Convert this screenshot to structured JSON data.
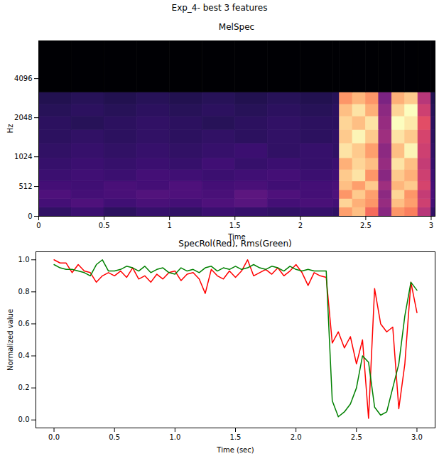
{
  "title": "Exp_4- best 3 features",
  "chart_data": [
    {
      "type": "heatmap",
      "title": "MelSpec",
      "x_label": "Time",
      "y_label": "Hz",
      "xlim": [
        0,
        3.03
      ],
      "xticks": [
        0,
        0.5,
        1,
        1.5,
        2,
        2.5,
        3
      ],
      "ylim": [
        0,
        8000
      ],
      "yticks": [
        0,
        512,
        1024,
        2048,
        4096
      ],
      "x_edges": [
        0,
        0.25,
        0.5,
        0.75,
        1,
        1.25,
        1.5,
        1.75,
        2,
        2.25,
        2.3,
        2.4,
        2.5,
        2.6,
        2.7,
        2.8,
        2.9,
        3,
        3.03
      ],
      "y_edges": [
        0,
        150,
        300,
        450,
        600,
        800,
        1000,
        1300,
        1650,
        2100,
        2600,
        3200,
        8000
      ],
      "cells": [
        [
          0.16,
          0.18,
          0.15,
          0.17,
          0.16,
          0.18,
          0.17,
          0.16,
          0.17,
          0.16,
          0.72,
          0.78,
          0.62,
          0.35,
          0.7,
          0.66,
          0.45,
          0.16
        ],
        [
          0.2,
          0.22,
          0.19,
          0.21,
          0.2,
          0.22,
          0.24,
          0.2,
          0.21,
          0.2,
          0.82,
          0.75,
          0.7,
          0.38,
          0.78,
          0.72,
          0.5,
          0.2
        ],
        [
          0.22,
          0.2,
          0.21,
          0.23,
          0.22,
          0.21,
          0.25,
          0.22,
          0.2,
          0.22,
          0.7,
          0.8,
          0.72,
          0.36,
          0.82,
          0.7,
          0.48,
          0.21
        ],
        [
          0.2,
          0.19,
          0.21,
          0.2,
          0.22,
          0.2,
          0.21,
          0.19,
          0.2,
          0.21,
          0.78,
          0.72,
          0.8,
          0.4,
          0.76,
          0.8,
          0.52,
          0.2
        ],
        [
          0.18,
          0.19,
          0.18,
          0.2,
          0.19,
          0.18,
          0.19,
          0.2,
          0.18,
          0.19,
          0.8,
          0.85,
          0.7,
          0.35,
          0.8,
          0.75,
          0.5,
          0.18
        ],
        [
          0.17,
          0.18,
          0.17,
          0.18,
          0.17,
          0.19,
          0.17,
          0.18,
          0.17,
          0.18,
          0.75,
          0.82,
          0.78,
          0.38,
          0.85,
          0.78,
          0.48,
          0.17
        ],
        [
          0.16,
          0.17,
          0.16,
          0.17,
          0.16,
          0.17,
          0.18,
          0.16,
          0.17,
          0.16,
          0.85,
          0.8,
          0.72,
          0.36,
          0.78,
          0.88,
          0.5,
          0.16
        ],
        [
          0.15,
          0.16,
          0.15,
          0.16,
          0.15,
          0.16,
          0.15,
          0.16,
          0.15,
          0.16,
          0.8,
          0.88,
          0.8,
          0.4,
          0.85,
          0.8,
          0.52,
          0.15
        ],
        [
          0.15,
          0.14,
          0.15,
          0.16,
          0.15,
          0.14,
          0.15,
          0.16,
          0.15,
          0.15,
          0.82,
          0.78,
          0.85,
          0.38,
          0.9,
          0.86,
          0.55,
          0.15
        ],
        [
          0.14,
          0.15,
          0.14,
          0.15,
          0.14,
          0.15,
          0.14,
          0.15,
          0.14,
          0.15,
          0.78,
          0.85,
          0.75,
          0.36,
          0.82,
          0.9,
          0.5,
          0.14
        ],
        [
          0.13,
          0.14,
          0.13,
          0.14,
          0.13,
          0.14,
          0.13,
          0.14,
          0.13,
          0.14,
          0.7,
          0.76,
          0.7,
          0.32,
          0.75,
          0.8,
          0.45,
          0.13
        ],
        [
          0,
          0,
          0,
          0,
          0,
          0,
          0,
          0,
          0,
          0,
          0,
          0,
          0,
          0,
          0,
          0,
          0,
          0
        ]
      ]
    },
    {
      "type": "line",
      "title": "SpecRol(Red), Rms(Green)",
      "x_label": "Time (sec)",
      "y_label": "Normalized value",
      "xlim": [
        -0.15,
        3.15
      ],
      "xticks": [
        {
          "value": 0,
          "label": "0.0"
        },
        {
          "value": 0.5,
          "label": "0.5"
        },
        {
          "value": 1,
          "label": "1.0"
        },
        {
          "value": 1.5,
          "label": "1.5"
        },
        {
          "value": 2,
          "label": "2.0"
        },
        {
          "value": 2.5,
          "label": "2.5"
        },
        {
          "value": 3,
          "label": "3.0"
        }
      ],
      "ylim": [
        -0.05,
        1.05
      ],
      "yticks": [
        {
          "value": 0,
          "label": "0.0"
        },
        {
          "value": 0.2,
          "label": "0.2"
        },
        {
          "value": 0.4,
          "label": "0.4"
        },
        {
          "value": 0.6,
          "label": "0.6"
        },
        {
          "value": 0.8,
          "label": "0.8"
        },
        {
          "value": 1,
          "label": "1.0"
        }
      ],
      "x": [
        0,
        0.05,
        0.1,
        0.15,
        0.2,
        0.25,
        0.3,
        0.35,
        0.4,
        0.45,
        0.5,
        0.55,
        0.6,
        0.65,
        0.7,
        0.75,
        0.8,
        0.85,
        0.9,
        0.95,
        1,
        1.05,
        1.1,
        1.15,
        1.2,
        1.25,
        1.3,
        1.35,
        1.4,
        1.45,
        1.5,
        1.55,
        1.6,
        1.65,
        1.7,
        1.75,
        1.8,
        1.85,
        1.9,
        1.95,
        2,
        2.05,
        2.1,
        2.15,
        2.2,
        2.25,
        2.3,
        2.35,
        2.4,
        2.45,
        2.5,
        2.55,
        2.6,
        2.65,
        2.7,
        2.75,
        2.8,
        2.85,
        2.9,
        2.95,
        3
      ],
      "series": [
        {
          "name": "SpecRol",
          "color": "#ff0000",
          "values": [
            1.0,
            0.98,
            0.98,
            0.92,
            0.97,
            0.93,
            0.92,
            0.86,
            0.9,
            0.92,
            0.9,
            0.93,
            0.89,
            0.95,
            0.88,
            0.9,
            0.86,
            0.91,
            0.88,
            0.92,
            0.93,
            0.87,
            0.91,
            0.92,
            0.88,
            0.79,
            0.94,
            0.9,
            0.88,
            0.93,
            0.89,
            0.93,
            1.0,
            0.9,
            0.92,
            0.94,
            0.91,
            0.95,
            0.9,
            0.93,
            0.97,
            0.92,
            0.84,
            0.92,
            0.9,
            0.89,
            0.48,
            0.55,
            0.45,
            0.52,
            0.35,
            0.5,
            0.01,
            0.82,
            0.6,
            0.55,
            0.58,
            0.07,
            0.35,
            0.86,
            0.67
          ]
        },
        {
          "name": "Rms",
          "color": "#008000",
          "values": [
            0.97,
            0.95,
            0.94,
            0.94,
            0.93,
            0.92,
            0.9,
            0.97,
            1.0,
            0.93,
            0.93,
            0.94,
            0.96,
            0.95,
            0.93,
            0.96,
            0.92,
            0.94,
            0.95,
            0.92,
            0.91,
            0.95,
            0.93,
            0.94,
            0.92,
            0.95,
            0.96,
            0.93,
            0.95,
            0.94,
            0.96,
            0.94,
            0.95,
            0.97,
            0.95,
            0.94,
            0.96,
            0.95,
            0.93,
            0.96,
            0.94,
            0.93,
            0.94,
            0.93,
            0.93,
            0.93,
            0.12,
            0.02,
            0.05,
            0.1,
            0.2,
            0.4,
            0.36,
            0.08,
            0.03,
            0.05,
            0.2,
            0.35,
            0.65,
            0.86,
            0.81
          ]
        }
      ]
    }
  ]
}
